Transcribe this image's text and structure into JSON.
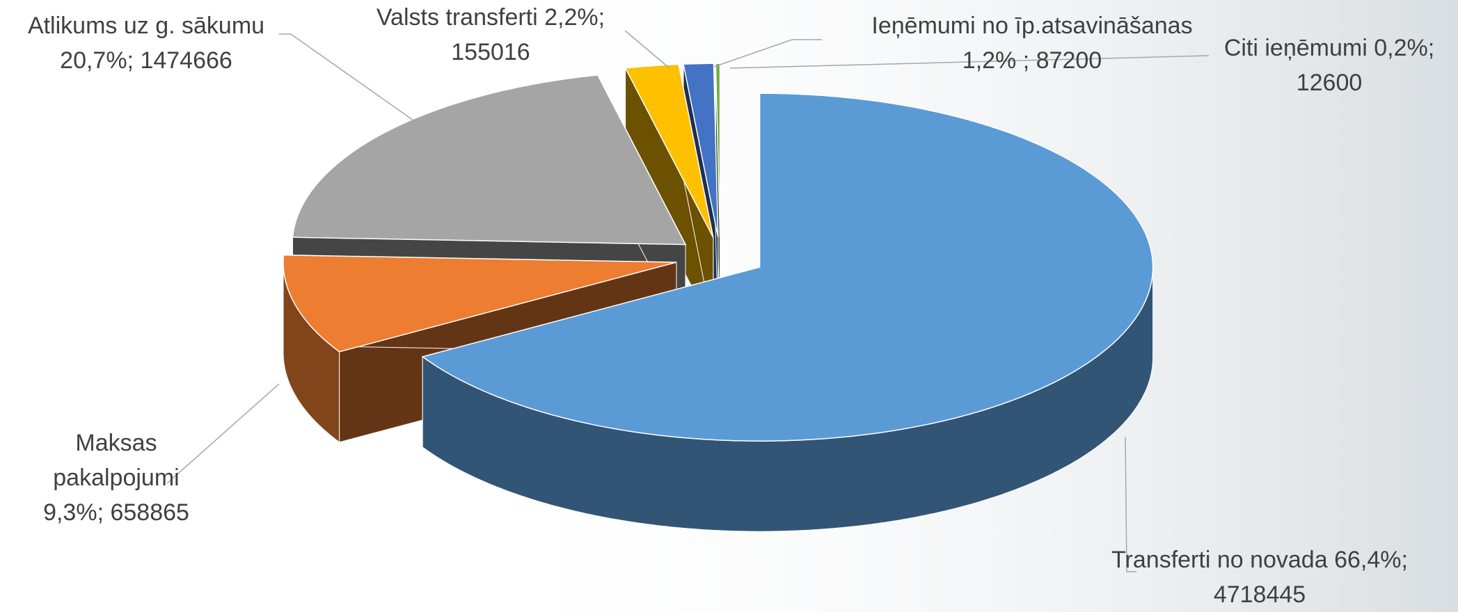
{
  "chart_data": {
    "type": "pie",
    "categories": [
      "Transferti no novada",
      "Maksas pakalpojumi",
      "Atlikums uz g. sākumu",
      "Valsts transferti",
      "Ieņēmumi no īp.atsavināšanas",
      "Citi ieņēmumi"
    ],
    "values": [
      4718445,
      658865,
      1474666,
      155016,
      87200,
      12600
    ],
    "value_labels": [
      "66,4%; 4718445",
      "9,3%; 658865",
      "20,7%; 1474666",
      "2,2%; 155016",
      "1,2% ; 87200",
      "0,2%; 12600"
    ],
    "colors": [
      "#5b9bd5",
      "#ed7d31",
      "#a5a5a5",
      "#ffc000",
      "#4472c4",
      "#70ad47"
    ]
  }
}
